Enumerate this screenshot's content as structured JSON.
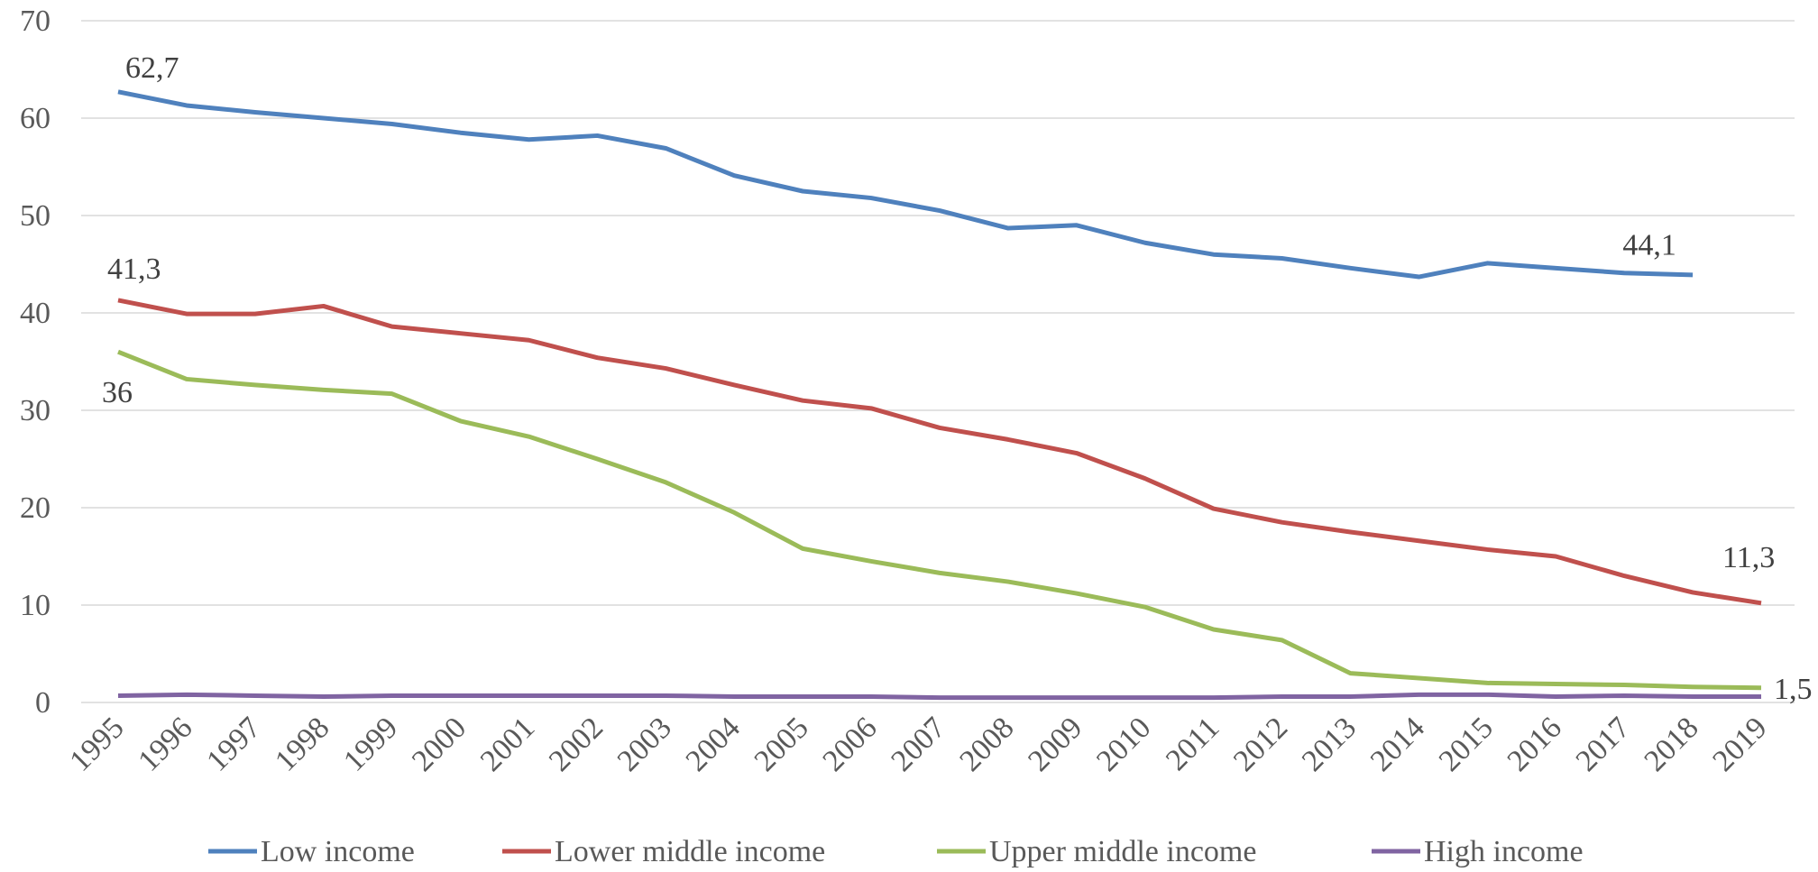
{
  "chart_data": {
    "type": "line",
    "categories": [
      "1995",
      "1996",
      "1997",
      "1998",
      "1999",
      "2000",
      "2001",
      "2002",
      "2003",
      "2004",
      "2005",
      "2006",
      "2007",
      "2008",
      "2009",
      "2010",
      "2011",
      "2012",
      "2013",
      "2014",
      "2015",
      "2016",
      "2017",
      "2018",
      "2019"
    ],
    "ylim": [
      0,
      70
    ],
    "yticks": [
      0,
      10,
      20,
      30,
      40,
      50,
      60,
      70
    ],
    "grid": true,
    "legend": "bottom",
    "series": [
      {
        "name": "Low income",
        "color": "#4f81bd",
        "values": [
          62.7,
          61.3,
          60.6,
          60.0,
          59.4,
          58.5,
          57.8,
          58.2,
          56.9,
          54.1,
          52.5,
          51.8,
          50.5,
          48.7,
          49.0,
          47.2,
          46.0,
          45.6,
          44.6,
          43.7,
          45.1,
          44.6,
          44.1,
          43.9,
          null
        ],
        "value_labels": [
          "62,7",
          null,
          null,
          null,
          null,
          null,
          null,
          null,
          null,
          null,
          null,
          null,
          null,
          null,
          null,
          null,
          null,
          null,
          null,
          null,
          null,
          null,
          "44,1",
          null,
          null
        ]
      },
      {
        "name": "Lower middle income",
        "color": "#c0504d",
        "values": [
          41.3,
          39.9,
          39.9,
          40.7,
          38.6,
          37.9,
          37.2,
          35.4,
          34.3,
          32.6,
          31.0,
          30.2,
          28.2,
          27.0,
          25.6,
          23.0,
          19.9,
          18.5,
          17.5,
          16.6,
          15.7,
          15.0,
          13.0,
          11.3,
          10.2
        ],
        "value_labels": [
          "41,3",
          null,
          null,
          null,
          null,
          null,
          null,
          null,
          null,
          null,
          null,
          null,
          null,
          null,
          null,
          null,
          null,
          null,
          null,
          null,
          null,
          null,
          null,
          "11,3",
          null
        ]
      },
      {
        "name": "Upper middle income",
        "color": "#9bbb59",
        "values": [
          36.0,
          33.2,
          32.6,
          32.1,
          31.7,
          28.9,
          27.3,
          25.0,
          22.6,
          19.5,
          15.8,
          14.5,
          13.3,
          12.4,
          11.2,
          9.8,
          7.5,
          6.4,
          3.0,
          2.5,
          2.0,
          1.9,
          1.8,
          1.6,
          1.5
        ],
        "value_labels": [
          "36",
          null,
          null,
          null,
          null,
          null,
          null,
          null,
          null,
          null,
          null,
          null,
          null,
          null,
          null,
          null,
          null,
          null,
          null,
          null,
          null,
          null,
          null,
          null,
          "1,5"
        ]
      },
      {
        "name": "High income",
        "color": "#8064a2",
        "values": [
          0.7,
          0.8,
          0.7,
          0.6,
          0.7,
          0.7,
          0.7,
          0.7,
          0.7,
          0.6,
          0.6,
          0.6,
          0.5,
          0.5,
          0.5,
          0.5,
          0.5,
          0.6,
          0.6,
          0.8,
          0.8,
          0.6,
          0.7,
          0.6,
          0.6
        ]
      }
    ]
  }
}
